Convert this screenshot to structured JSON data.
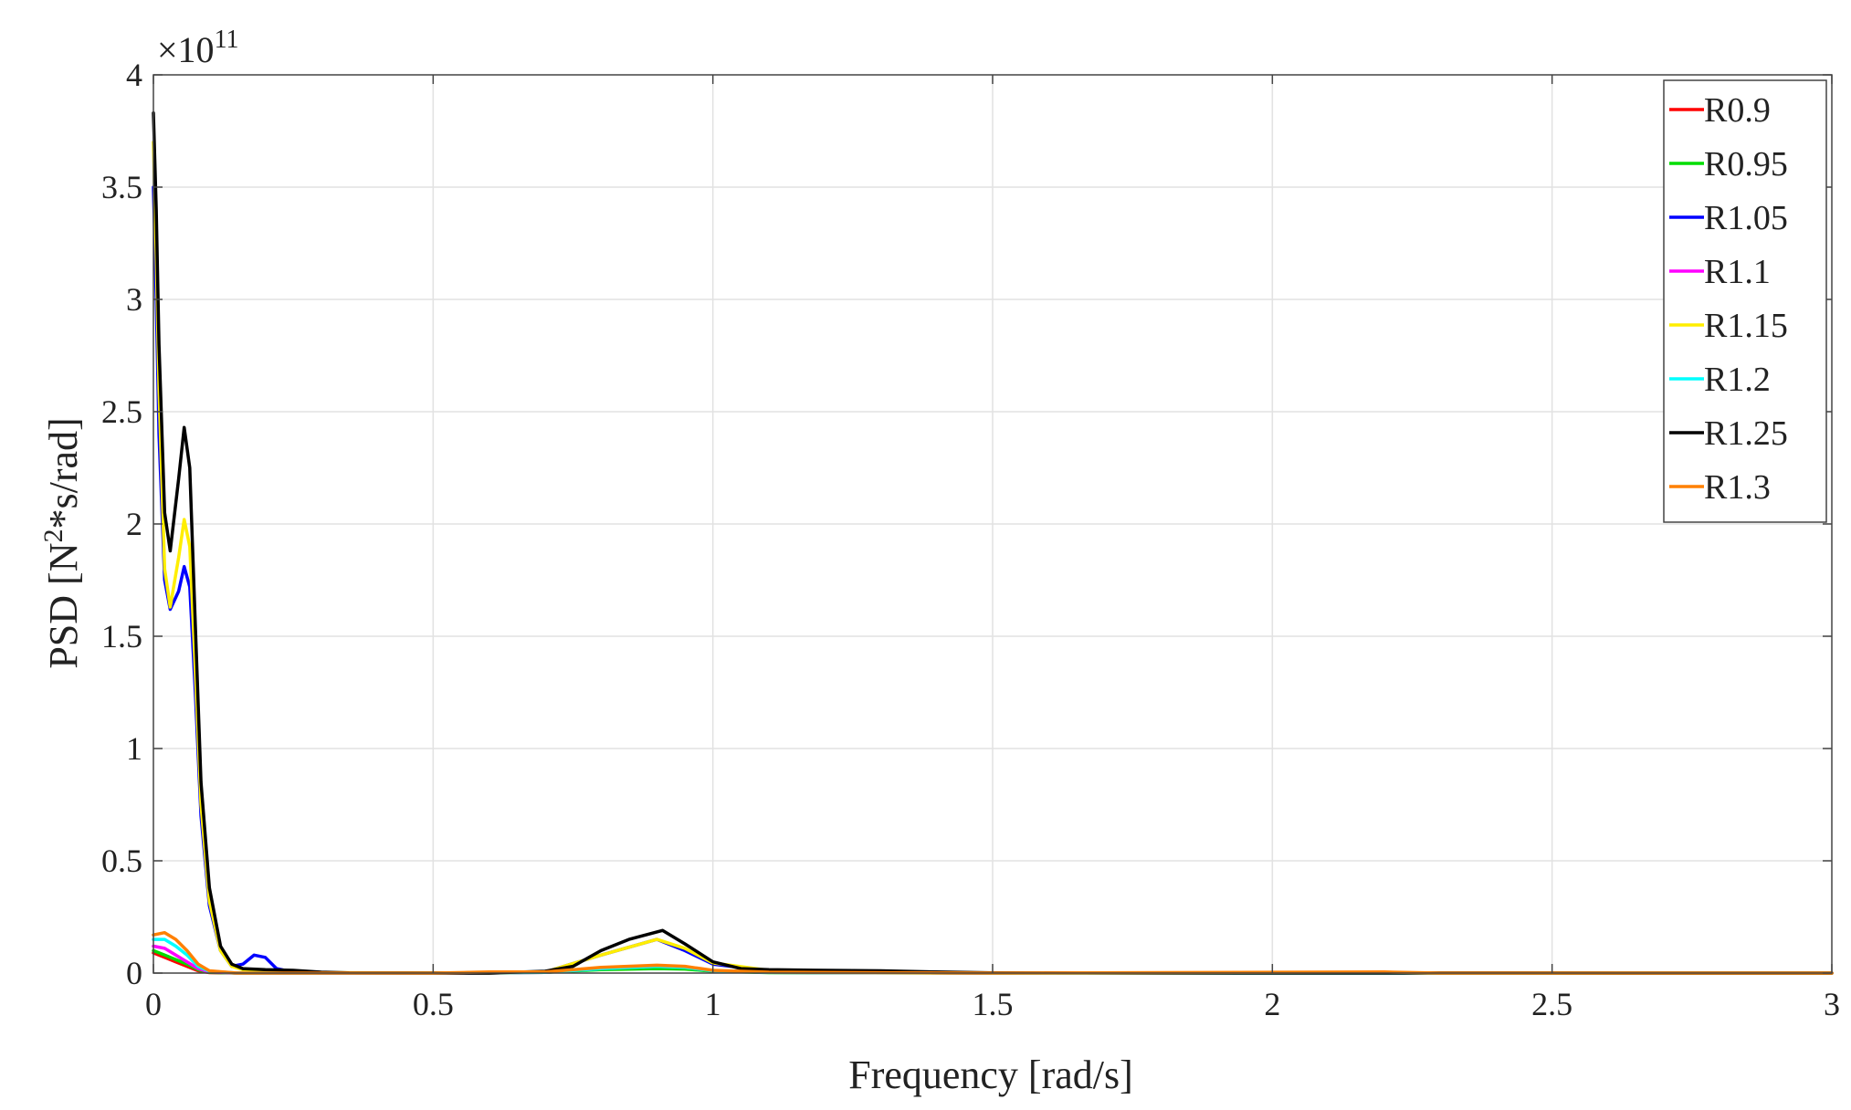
{
  "chart_data": {
    "type": "line",
    "xlabel": "Frequency [rad/s]",
    "ylabel_main": "PSD [N",
    "ylabel_sup": "2",
    "ylabel_rest": "*s/rad]",
    "y_exponent_base": "×10",
    "y_exponent_power": "11",
    "xlim": [
      0,
      3
    ],
    "ylim": [
      0,
      4
    ],
    "y_unit_note": "y values in units of 1e11",
    "grid": true,
    "legend_placement": "top-right",
    "x_ticks": [
      0,
      0.5,
      1,
      1.5,
      2,
      2.5,
      3
    ],
    "x_tick_labels": [
      "0",
      "0.5",
      "1",
      "1.5",
      "2",
      "2.5",
      "3"
    ],
    "y_ticks": [
      0,
      0.5,
      1,
      1.5,
      2,
      2.5,
      3,
      3.5,
      4
    ],
    "y_tick_labels": [
      "0",
      "0.5",
      "1",
      "1.5",
      "2",
      "2.5",
      "3",
      "3.5",
      "4"
    ],
    "series": [
      {
        "name": "R0.9",
        "color": "#ff0000",
        "points": [
          [
            0,
            0.09
          ],
          [
            0.02,
            0.07
          ],
          [
            0.04,
            0.05
          ],
          [
            0.06,
            0.03
          ],
          [
            0.08,
            0.01
          ],
          [
            0.1,
            0.002
          ],
          [
            0.15,
            0
          ],
          [
            0.5,
            0
          ],
          [
            0.7,
            0.003
          ],
          [
            0.8,
            0.02
          ],
          [
            0.9,
            0.03
          ],
          [
            0.95,
            0.025
          ],
          [
            1,
            0.01
          ],
          [
            1.1,
            0.003
          ],
          [
            1.5,
            0
          ],
          [
            3,
            0
          ]
        ]
      },
      {
        "name": "R0.95",
        "color": "#00dd00",
        "points": [
          [
            0,
            0.1
          ],
          [
            0.02,
            0.08
          ],
          [
            0.04,
            0.06
          ],
          [
            0.06,
            0.04
          ],
          [
            0.08,
            0.015
          ],
          [
            0.1,
            0.003
          ],
          [
            0.15,
            0
          ],
          [
            0.5,
            0
          ],
          [
            0.7,
            0.003
          ],
          [
            0.8,
            0.015
          ],
          [
            0.9,
            0.02
          ],
          [
            0.95,
            0.018
          ],
          [
            1,
            0.008
          ],
          [
            1.1,
            0.002
          ],
          [
            1.5,
            0
          ],
          [
            3,
            0
          ]
        ]
      },
      {
        "name": "R1.05",
        "color": "#0000ff",
        "points": [
          [
            0,
            3.5
          ],
          [
            0.005,
            3.0
          ],
          [
            0.01,
            2.4
          ],
          [
            0.02,
            1.75
          ],
          [
            0.03,
            1.62
          ],
          [
            0.045,
            1.7
          ],
          [
            0.055,
            1.81
          ],
          [
            0.065,
            1.72
          ],
          [
            0.075,
            1.25
          ],
          [
            0.085,
            0.7
          ],
          [
            0.1,
            0.3
          ],
          [
            0.12,
            0.1
          ],
          [
            0.14,
            0.03
          ],
          [
            0.16,
            0.04
          ],
          [
            0.18,
            0.08
          ],
          [
            0.2,
            0.07
          ],
          [
            0.22,
            0.02
          ],
          [
            0.25,
            0.005
          ],
          [
            0.3,
            0
          ],
          [
            0.6,
            0
          ],
          [
            0.7,
            0.005
          ],
          [
            0.8,
            0.08
          ],
          [
            0.9,
            0.15
          ],
          [
            0.95,
            0.1
          ],
          [
            1,
            0.04
          ],
          [
            1.1,
            0.01
          ],
          [
            1.5,
            0
          ],
          [
            3,
            0
          ]
        ]
      },
      {
        "name": "R1.1",
        "color": "#ff00ff",
        "points": [
          [
            0,
            0.12
          ],
          [
            0.02,
            0.11
          ],
          [
            0.04,
            0.08
          ],
          [
            0.06,
            0.05
          ],
          [
            0.08,
            0.02
          ],
          [
            0.1,
            0.005
          ],
          [
            0.15,
            0
          ],
          [
            0.5,
            0
          ],
          [
            0.7,
            0.003
          ],
          [
            0.8,
            0.02
          ],
          [
            0.9,
            0.03
          ],
          [
            0.95,
            0.025
          ],
          [
            1,
            0.01
          ],
          [
            1.1,
            0.003
          ],
          [
            1.5,
            0
          ],
          [
            3,
            0
          ]
        ]
      },
      {
        "name": "R1.15",
        "color": "#ffee00",
        "points": [
          [
            0,
            3.7
          ],
          [
            0.005,
            3.2
          ],
          [
            0.01,
            2.6
          ],
          [
            0.02,
            1.8
          ],
          [
            0.03,
            1.63
          ],
          [
            0.045,
            1.85
          ],
          [
            0.055,
            2.02
          ],
          [
            0.065,
            1.9
          ],
          [
            0.075,
            1.35
          ],
          [
            0.085,
            0.75
          ],
          [
            0.1,
            0.32
          ],
          [
            0.12,
            0.1
          ],
          [
            0.14,
            0.03
          ],
          [
            0.16,
            0.015
          ],
          [
            0.2,
            0.01
          ],
          [
            0.25,
            0.008
          ],
          [
            0.3,
            0.002
          ],
          [
            0.6,
            0
          ],
          [
            0.7,
            0.005
          ],
          [
            0.8,
            0.08
          ],
          [
            0.9,
            0.15
          ],
          [
            0.95,
            0.11
          ],
          [
            1,
            0.045
          ],
          [
            1.1,
            0.012
          ],
          [
            1.5,
            0
          ],
          [
            3,
            0
          ]
        ]
      },
      {
        "name": "R1.2",
        "color": "#00ffff",
        "points": [
          [
            0,
            0.15
          ],
          [
            0.02,
            0.15
          ],
          [
            0.04,
            0.12
          ],
          [
            0.06,
            0.08
          ],
          [
            0.08,
            0.03
          ],
          [
            0.1,
            0.008
          ],
          [
            0.15,
            0
          ],
          [
            0.5,
            0
          ],
          [
            0.7,
            0.003
          ],
          [
            0.8,
            0.02
          ],
          [
            0.9,
            0.03
          ],
          [
            0.95,
            0.025
          ],
          [
            1,
            0.01
          ],
          [
            1.1,
            0.003
          ],
          [
            1.5,
            0
          ],
          [
            3,
            0
          ]
        ]
      },
      {
        "name": "R1.25",
        "color": "#000000",
        "points": [
          [
            0,
            3.83
          ],
          [
            0.005,
            3.4
          ],
          [
            0.01,
            2.8
          ],
          [
            0.02,
            2.05
          ],
          [
            0.03,
            1.88
          ],
          [
            0.045,
            2.2
          ],
          [
            0.055,
            2.43
          ],
          [
            0.065,
            2.25
          ],
          [
            0.075,
            1.55
          ],
          [
            0.085,
            0.85
          ],
          [
            0.1,
            0.38
          ],
          [
            0.12,
            0.12
          ],
          [
            0.14,
            0.04
          ],
          [
            0.16,
            0.02
          ],
          [
            0.2,
            0.015
          ],
          [
            0.25,
            0.012
          ],
          [
            0.3,
            0.004
          ],
          [
            0.35,
            0.001
          ],
          [
            0.6,
            0
          ],
          [
            0.7,
            0.008
          ],
          [
            0.75,
            0.03
          ],
          [
            0.8,
            0.1
          ],
          [
            0.85,
            0.15
          ],
          [
            0.91,
            0.19
          ],
          [
            0.95,
            0.13
          ],
          [
            1,
            0.05
          ],
          [
            1.05,
            0.02
          ],
          [
            1.1,
            0.015
          ],
          [
            1.2,
            0.012
          ],
          [
            1.3,
            0.01
          ],
          [
            1.4,
            0.005
          ],
          [
            1.5,
            0.001
          ],
          [
            3,
            0
          ]
        ]
      },
      {
        "name": "R1.3",
        "color": "#ff8000",
        "points": [
          [
            0,
            0.17
          ],
          [
            0.02,
            0.18
          ],
          [
            0.04,
            0.15
          ],
          [
            0.06,
            0.1
          ],
          [
            0.08,
            0.04
          ],
          [
            0.1,
            0.01
          ],
          [
            0.15,
            0
          ],
          [
            0.5,
            0
          ],
          [
            0.6,
            0.005
          ],
          [
            0.7,
            0.005
          ],
          [
            0.8,
            0.025
          ],
          [
            0.9,
            0.035
          ],
          [
            0.95,
            0.03
          ],
          [
            1,
            0.012
          ],
          [
            1.1,
            0.004
          ],
          [
            1.5,
            0
          ],
          [
            2.2,
            0.005
          ],
          [
            2.3,
            0
          ],
          [
            3,
            0
          ]
        ]
      }
    ]
  }
}
